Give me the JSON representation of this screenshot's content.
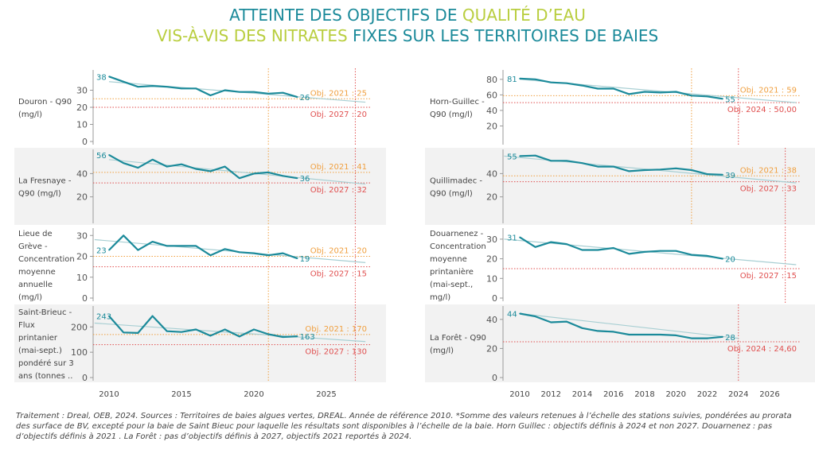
{
  "title": {
    "line1_a": "ATTEINTE DES OBJECTIFS DE ",
    "line1_b": "QUALITÉ D’EAU",
    "line2_a": "VIS-À-VIS DES NITRATES",
    "line2_b": " FIXES SUR LES TERRITOIRES DE BAIES"
  },
  "footnote": "Traitement : Dreal, OEB, 2024. Sources : Territoires de baies algues vertes, DREAL. Année de référence 2010. *Somme des valeurs retenues à l’échelle des stations suivies, pondérées au prorata des surface de BV, excepté pour la baie de Saint Bieuc pour laquelle les résultats sont disponibles à l’échelle de la baie. Horn Guillec : objectifs définis à 2024 et non 2027.  Douarnenez : pas d’objectifs définis à 2021 . La Forêt : pas d’objectifs définis à 2027, objectifs 2021 reportés à 2024.",
  "colors": {
    "line": "#1b8a9a",
    "trend": "#a8cfd3",
    "obj_orange": "#f0a040",
    "obj_red": "#e05050",
    "band": "#f2f2f2",
    "axis": "#555555"
  },
  "chart_data": [
    {
      "type": "line",
      "name": "Douron - Q90 (mg/l)",
      "label_lines": [
        "Douron - Q90",
        "(mg/l)"
      ],
      "ylim": [
        0,
        40
      ],
      "yticks": [
        0,
        10,
        20,
        30
      ],
      "xlim": [
        2009,
        2027.7
      ],
      "xticks": [
        2010,
        2015,
        2020,
        2025
      ],
      "x": [
        2010,
        2011,
        2012,
        2013,
        2014,
        2015,
        2016,
        2017,
        2018,
        2019,
        2020,
        2021,
        2022,
        2023
      ],
      "values": [
        38,
        35,
        32,
        32.5,
        32,
        31,
        31,
        27,
        30,
        29,
        29,
        28,
        28.5,
        26
      ],
      "first_label": "38",
      "last_label": "26",
      "trend": {
        "x": [
          2010,
          2027.7
        ],
        "y": [
          35,
          23
        ]
      },
      "objectives": [
        {
          "label": "Obj. 2021 : 25",
          "value": 25,
          "year": 2021,
          "color": "orange"
        },
        {
          "label": "Obj. 2027 : 20",
          "value": 20,
          "year": 2027,
          "color": "red"
        }
      ]
    },
    {
      "type": "line",
      "name": "La Fresnaye - Q90 (mg/l)",
      "label_lines": [
        "La Fresnaye -",
        "Q90 (mg/l)"
      ],
      "ylim": [
        0,
        58
      ],
      "yticks": [
        20,
        40
      ],
      "xlim": [
        2009,
        2027.7
      ],
      "xticks": [
        2010,
        2015,
        2020,
        2025
      ],
      "x": [
        2010,
        2011,
        2012,
        2013,
        2014,
        2015,
        2016,
        2017,
        2018,
        2019,
        2020,
        2021,
        2022,
        2023
      ],
      "values": [
        56,
        49,
        45,
        52,
        46,
        48,
        44,
        42,
        46,
        36,
        40,
        41,
        38,
        36
      ],
      "first_label": "56",
      "last_label": "36",
      "trend": {
        "x": [
          2010,
          2027.7
        ],
        "y": [
          52,
          31
        ]
      },
      "objectives": [
        {
          "label": "Obj. 2021 : 41",
          "value": 41,
          "year": 2021,
          "color": "orange"
        },
        {
          "label": "Obj. 2027 : 32",
          "value": 32,
          "year": 2027,
          "color": "red"
        }
      ]
    },
    {
      "type": "line",
      "name": "Lieue de Grève - Concentration moyenne annuelle (mg/l)",
      "label_lines": [
        "Lieue de",
        "Grève -",
        "Concentration",
        "moyenne",
        "annuelle",
        "(mg/l)"
      ],
      "ylim": [
        0,
        32
      ],
      "yticks": [
        0,
        10,
        20,
        30
      ],
      "xlim": [
        2009,
        2027.7
      ],
      "xticks": [
        2010,
        2015,
        2020,
        2025
      ],
      "x": [
        2010,
        2011,
        2012,
        2013,
        2014,
        2015,
        2016,
        2017,
        2018,
        2019,
        2020,
        2021,
        2022,
        2023
      ],
      "values": [
        23,
        30,
        23,
        27,
        25,
        25,
        25,
        20.5,
        23.5,
        22,
        21.5,
        20.5,
        21.5,
        19
      ],
      "first_label": "23",
      "last_label": "19",
      "trend": {
        "x": [
          2009,
          2027.7
        ],
        "y": [
          28,
          17
        ]
      },
      "objectives": [
        {
          "label": "Obj. 2021 : 20",
          "value": 20,
          "year": 2021,
          "color": "orange"
        },
        {
          "label": "Obj. 2027 : 15",
          "value": 15,
          "year": 2027,
          "color": "red"
        }
      ]
    },
    {
      "type": "line",
      "name": "Saint-Brieuc - Flux printanier (mai-sept.) pondéré sur 3 ans",
      "label_lines": [
        "Saint-Brieuc -",
        "Flux",
        "printanier",
        "(mai-sept.)",
        "pondéré sur 3",
        "ans (tonnes .."
      ],
      "ylim": [
        0,
        270
      ],
      "yticks": [
        0,
        100,
        200
      ],
      "xlim": [
        2009,
        2027.7
      ],
      "xticks": [
        2010,
        2015,
        2020,
        2025
      ],
      "x": [
        2010,
        2011,
        2012,
        2013,
        2014,
        2015,
        2016,
        2017,
        2018,
        2019,
        2020,
        2021,
        2022,
        2023
      ],
      "values": [
        243,
        178,
        176,
        243,
        183,
        180,
        190,
        165,
        190,
        162,
        190,
        171,
        160,
        163
      ],
      "first_label": "243",
      "last_label": "163",
      "trend": {
        "x": [
          2009,
          2027.7
        ],
        "y": [
          215,
          142
        ]
      },
      "objectives": [
        {
          "label": "Obj. 2021 : 170",
          "value": 170,
          "year": 2021,
          "color": "orange"
        },
        {
          "label": "Obj. 2027 : 130",
          "value": 130,
          "year": 2027,
          "color": "red"
        }
      ]
    },
    {
      "type": "line",
      "name": "Horn-Guillec - Q90 (mg/l)",
      "label_lines": [
        "Horn-Guillec -",
        "Q90 (mg/l)"
      ],
      "ylim": [
        0,
        88
      ],
      "yticks": [
        20,
        40,
        60,
        80
      ],
      "xlim": [
        2009,
        2027.7
      ],
      "xticks": [
        2010,
        2012,
        2014,
        2016,
        2018,
        2020,
        2022,
        2024,
        2026
      ],
      "x": [
        2010,
        2011,
        2012,
        2013,
        2014,
        2015,
        2016,
        2017,
        2018,
        2019,
        2020,
        2021,
        2022,
        2023
      ],
      "values": [
        81,
        80,
        76,
        75,
        72,
        68,
        68,
        61,
        64,
        63,
        64,
        59,
        58,
        55
      ],
      "first_label": "81",
      "last_label": "55",
      "trend": {
        "x": [
          2010,
          2027.7
        ],
        "y": [
          80,
          50
        ]
      },
      "objectives": [
        {
          "label": "Obj. 2021 : 59",
          "value": 59,
          "year": 2021,
          "color": "orange"
        },
        {
          "label": "Obj. 2024 : 50,00",
          "value": 50,
          "year": 2024,
          "color": "red"
        }
      ]
    },
    {
      "type": "line",
      "name": "Quillimadec - Q90 (mg/l)",
      "label_lines": [
        "Quillimadec -",
        "Q90 (mg/l)"
      ],
      "ylim": [
        0,
        58
      ],
      "yticks": [
        20,
        40
      ],
      "xlim": [
        2009,
        2027.7
      ],
      "xticks": [
        2010,
        2012,
        2014,
        2016,
        2018,
        2020,
        2022,
        2024,
        2026
      ],
      "x": [
        2010,
        2011,
        2012,
        2013,
        2014,
        2015,
        2016,
        2017,
        2018,
        2019,
        2020,
        2021,
        2022,
        2023
      ],
      "values": [
        55,
        55.5,
        51,
        51,
        49,
        46,
        46,
        42,
        43,
        43.5,
        44.5,
        43,
        39.5,
        39
      ],
      "first_label": "55",
      "last_label": "39",
      "trend": {
        "x": [
          2009,
          2027.7
        ],
        "y": [
          55,
          32
        ]
      },
      "objectives": [
        {
          "label": "Obj. 2021 : 38",
          "value": 38,
          "year": 2021,
          "color": "orange"
        },
        {
          "label": "Obj. 2027 : 33",
          "value": 33,
          "year": 2027,
          "color": "red"
        }
      ]
    },
    {
      "type": "line",
      "name": "Douarnenez - Concentration moyenne printanière (mai-sept., mg/l)",
      "label_lines": [
        "Douarnenez -",
        "Concentration",
        "moyenne",
        "printanière",
        "(mai-sept.,",
        "mg/l)"
      ],
      "ylim": [
        0,
        34
      ],
      "yticks": [
        0,
        10,
        20,
        30
      ],
      "xlim": [
        2009,
        2027.7
      ],
      "xticks": [
        2010,
        2012,
        2014,
        2016,
        2018,
        2020,
        2022,
        2024,
        2026
      ],
      "x": [
        2010,
        2011,
        2012,
        2013,
        2014,
        2015,
        2016,
        2017,
        2018,
        2019,
        2020,
        2021,
        2022,
        2023
      ],
      "values": [
        31,
        26,
        28.5,
        27.5,
        24.5,
        24.5,
        25.5,
        22.5,
        23.5,
        24,
        24,
        22,
        21.5,
        20
      ],
      "first_label": "31",
      "last_label": "20",
      "trend": {
        "x": [
          2009,
          2027.7
        ],
        "y": [
          30,
          17
        ]
      },
      "objectives": [
        {
          "label": "Obj. 2027 : 15",
          "value": 15,
          "year": 2027,
          "color": "red"
        }
      ]
    },
    {
      "type": "line",
      "name": "La Forêt - Q90 (mg/l)",
      "label_lines": [
        "La Forêt - Q90",
        "(mg/l)"
      ],
      "ylim": [
        0,
        47
      ],
      "yticks": [
        0,
        20,
        40
      ],
      "xlim": [
        2009,
        2027.7
      ],
      "xticks": [
        2010,
        2012,
        2014,
        2016,
        2018,
        2020,
        2022,
        2024,
        2026
      ],
      "x": [
        2010,
        2011,
        2012,
        2013,
        2014,
        2015,
        2016,
        2017,
        2018,
        2019,
        2020,
        2021,
        2022,
        2023
      ],
      "values": [
        44,
        42,
        38,
        38.5,
        34,
        32,
        31.5,
        29.5,
        29.5,
        29.5,
        29,
        27,
        27,
        28
      ],
      "first_label": "44",
      "last_label": "28",
      "trend": {
        "x": [
          2010,
          2024
        ],
        "y": [
          44,
          27
        ]
      },
      "objectives": [
        {
          "label": "Obj. 2024 : 24,60",
          "value": 24.6,
          "year": 2024,
          "color": "red"
        }
      ]
    }
  ]
}
